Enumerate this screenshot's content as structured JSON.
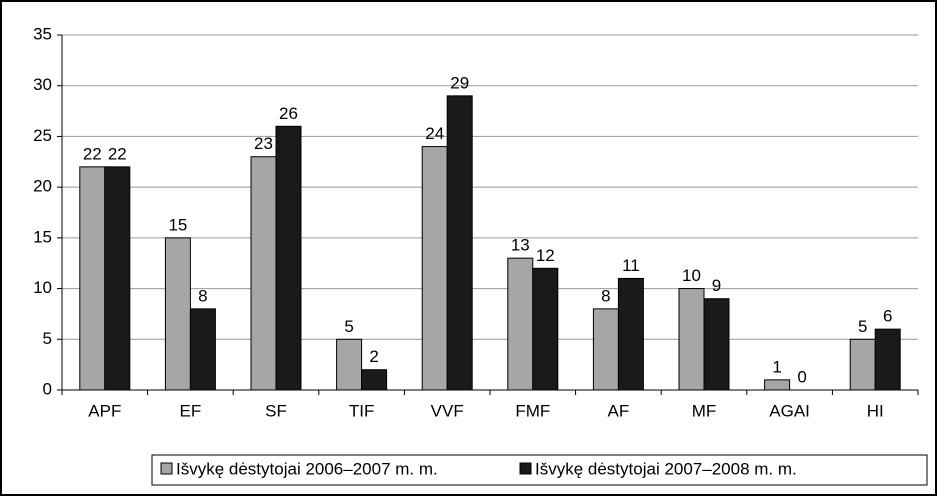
{
  "chart_data": {
    "type": "bar",
    "categories": [
      "APF",
      "EF",
      "SF",
      "TIF",
      "VVF",
      "FMF",
      "AF",
      "MF",
      "AGAI",
      "HI"
    ],
    "series": [
      {
        "name": "Išvykę dėstytojai 2006–2007 m. m.",
        "color": "#a6a6a6",
        "values": [
          22,
          15,
          23,
          5,
          24,
          13,
          8,
          10,
          1,
          5
        ]
      },
      {
        "name": "Išvykę dėstytojai 2007–2008 m. m.",
        "color": "#1a1a1a",
        "values": [
          22,
          8,
          26,
          2,
          29,
          12,
          11,
          9,
          0,
          6
        ]
      }
    ],
    "ylim": [
      0,
      35
    ],
    "yticks": [
      0,
      5,
      10,
      15,
      20,
      25,
      30,
      35
    ],
    "grid": true,
    "legend": "bottom"
  }
}
